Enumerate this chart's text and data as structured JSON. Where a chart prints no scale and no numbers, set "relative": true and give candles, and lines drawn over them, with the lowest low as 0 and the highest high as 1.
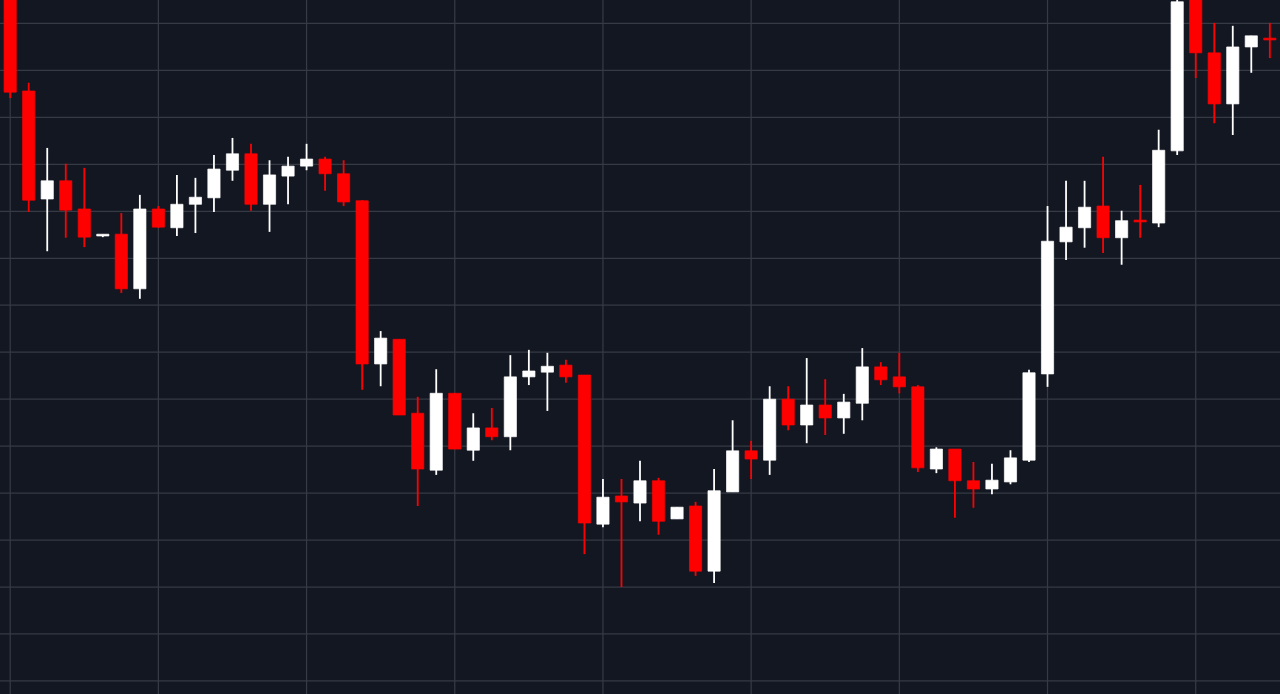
{
  "chart_data": {
    "type": "candlestick",
    "relative": true,
    "grid": true,
    "categories": [
      null,
      null,
      null,
      null,
      null,
      null,
      null,
      null,
      null,
      null,
      null,
      null,
      null,
      null,
      null,
      null,
      null,
      null,
      null,
      null,
      null,
      null,
      null,
      null,
      null,
      null,
      null,
      null,
      null,
      null,
      null,
      null,
      null,
      null,
      null,
      null,
      null,
      null,
      null,
      null,
      null,
      null,
      null,
      null,
      null,
      null,
      null,
      null,
      null,
      null,
      null,
      null,
      null,
      null,
      null,
      null,
      null,
      null,
      null,
      null,
      null,
      null,
      null,
      null,
      null,
      null,
      null,
      null,
      null
    ],
    "ohlc": [
      [
        1.0,
        1.0,
        0.833,
        0.843
      ],
      [
        0.845,
        0.859,
        0.639,
        0.659
      ],
      [
        0.661,
        0.748,
        0.572,
        0.692
      ],
      [
        0.692,
        0.721,
        0.595,
        0.642
      ],
      [
        0.644,
        0.714,
        0.579,
        0.596
      ],
      [
        0.598,
        0.6,
        0.596,
        0.6
      ],
      [
        0.601,
        0.637,
        0.501,
        0.508
      ],
      [
        0.508,
        0.668,
        0.491,
        0.644
      ],
      [
        0.644,
        0.649,
        0.612,
        0.613
      ],
      [
        0.612,
        0.702,
        0.598,
        0.652
      ],
      [
        0.652,
        0.697,
        0.603,
        0.664
      ],
      [
        0.663,
        0.736,
        0.639,
        0.712
      ],
      [
        0.71,
        0.765,
        0.692,
        0.738
      ],
      [
        0.738,
        0.755,
        0.641,
        0.652
      ],
      [
        0.652,
        0.727,
        0.605,
        0.702
      ],
      [
        0.7,
        0.733,
        0.652,
        0.717
      ],
      [
        0.717,
        0.755,
        0.71,
        0.729
      ],
      [
        0.729,
        0.733,
        0.675,
        0.704
      ],
      [
        0.704,
        0.727,
        0.649,
        0.656
      ],
      [
        0.658,
        0.659,
        0.336,
        0.38
      ],
      [
        0.38,
        0.436,
        0.342,
        0.424
      ],
      [
        0.422,
        0.422,
        0.293,
        0.293
      ],
      [
        0.296,
        0.324,
        0.138,
        0.201
      ],
      [
        0.199,
        0.371,
        0.191,
        0.33
      ],
      [
        0.33,
        0.33,
        0.235,
        0.235
      ],
      [
        0.233,
        0.296,
        0.215,
        0.271
      ],
      [
        0.271,
        0.305,
        0.25,
        0.256
      ],
      [
        0.256,
        0.395,
        0.233,
        0.358
      ],
      [
        0.358,
        0.404,
        0.344,
        0.368
      ],
      [
        0.366,
        0.399,
        0.3,
        0.376
      ],
      [
        0.378,
        0.387,
        0.348,
        0.358
      ],
      [
        0.361,
        0.361,
        0.056,
        0.109
      ],
      [
        0.107,
        0.184,
        0.102,
        0.153
      ],
      [
        0.155,
        0.184,
        0.0,
        0.145
      ],
      [
        0.143,
        0.215,
        0.112,
        0.181
      ],
      [
        0.181,
        0.186,
        0.089,
        0.112
      ],
      [
        0.116,
        0.136,
        0.116,
        0.136
      ],
      [
        0.138,
        0.145,
        0.019,
        0.027
      ],
      [
        0.027,
        0.201,
        0.007,
        0.164
      ],
      [
        0.162,
        0.284,
        0.162,
        0.232
      ],
      [
        0.232,
        0.249,
        0.184,
        0.218
      ],
      [
        0.216,
        0.342,
        0.191,
        0.32
      ],
      [
        0.32,
        0.342,
        0.267,
        0.276
      ],
      [
        0.276,
        0.39,
        0.245,
        0.31
      ],
      [
        0.31,
        0.354,
        0.259,
        0.288
      ],
      [
        0.288,
        0.329,
        0.261,
        0.315
      ],
      [
        0.313,
        0.407,
        0.284,
        0.375
      ],
      [
        0.375,
        0.383,
        0.344,
        0.353
      ],
      [
        0.358,
        0.399,
        0.33,
        0.341
      ],
      [
        0.341,
        0.344,
        0.196,
        0.203
      ],
      [
        0.201,
        0.238,
        0.194,
        0.235
      ],
      [
        0.235,
        0.235,
        0.118,
        0.181
      ],
      [
        0.181,
        0.213,
        0.135,
        0.167
      ],
      [
        0.167,
        0.21,
        0.158,
        0.182
      ],
      [
        0.179,
        0.233,
        0.175,
        0.22
      ],
      [
        0.216,
        0.37,
        0.213,
        0.365
      ],
      [
        0.363,
        0.649,
        0.341,
        0.589
      ],
      [
        0.588,
        0.692,
        0.557,
        0.613
      ],
      [
        0.612,
        0.692,
        0.578,
        0.647
      ],
      [
        0.649,
        0.733,
        0.569,
        0.595
      ],
      [
        0.595,
        0.641,
        0.549,
        0.624
      ],
      [
        0.624,
        0.685,
        0.595,
        0.622
      ],
      [
        0.62,
        0.779,
        0.613,
        0.744
      ],
      [
        0.743,
        1.0,
        0.736,
        0.997
      ],
      [
        1.0,
        1.0,
        0.867,
        0.91
      ],
      [
        0.91,
        0.961,
        0.79,
        0.823
      ],
      [
        0.823,
        0.956,
        0.77,
        0.92
      ],
      [
        0.92,
        0.939,
        0.876,
        0.939
      ],
      [
        0.935,
        0.961,
        0.901,
        0.932
      ]
    ],
    "colors": [
      "#ff0000",
      "#ff0000",
      "#ffffff",
      "#ff0000",
      "#ff0000",
      "#ffffff",
      "#ff0000",
      "#ffffff",
      "#ff0000",
      "#ffffff",
      "#ffffff",
      "#ffffff",
      "#ffffff",
      "#ff0000",
      "#ffffff",
      "#ffffff",
      "#ffffff",
      "#ff0000",
      "#ff0000",
      "#ff0000",
      "#ffffff",
      "#ff0000",
      "#ff0000",
      "#ffffff",
      "#ff0000",
      "#ffffff",
      "#ff0000",
      "#ffffff",
      "#ffffff",
      "#ffffff",
      "#ff0000",
      "#ff0000",
      "#ffffff",
      "#ff0000",
      "#ffffff",
      "#ff0000",
      "#ffffff",
      "#ff0000",
      "#ffffff",
      "#ffffff",
      "#ff0000",
      "#ffffff",
      "#ff0000",
      "#ffffff",
      "#ff0000",
      "#ffffff",
      "#ffffff",
      "#ff0000",
      "#ff0000",
      "#ff0000",
      "#ffffff",
      "#ff0000",
      "#ff0000",
      "#ffffff",
      "#ffffff",
      "#ffffff",
      "#ffffff",
      "#ffffff",
      "#ffffff",
      "#ff0000",
      "#ffffff",
      "#ff0000",
      "#ffffff",
      "#ffffff",
      "#ff0000",
      "#ff0000",
      "#ffffff",
      "#ffffff",
      "#ff0000"
    ]
  }
}
